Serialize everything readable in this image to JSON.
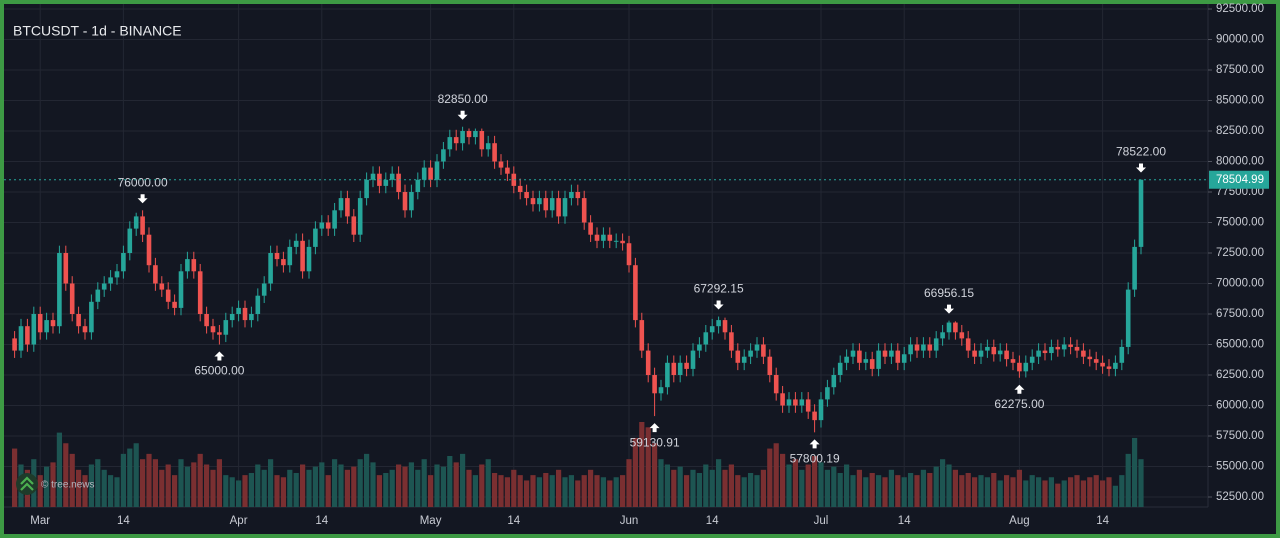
{
  "chart_data": {
    "type": "candlestick",
    "title": "BTCUSDT - 1d - BINANCE",
    "watermark": "© tree.news",
    "up_color": "#26a69a",
    "down_color": "#ef5350",
    "volume_up_color": "#1d5552",
    "volume_down_color": "#7a2f31",
    "grid": true,
    "ylim": [
      51680,
      92910
    ],
    "yticks": [
      {
        "value": 52500,
        "label": "52500.00"
      },
      {
        "value": 55000,
        "label": "55000.00"
      },
      {
        "value": 57500,
        "label": "57500.00"
      },
      {
        "value": 60000,
        "label": "60000.00"
      },
      {
        "value": 62500,
        "label": "62500.00"
      },
      {
        "value": 65000,
        "label": "65000.00"
      },
      {
        "value": 67500,
        "label": "67500.00"
      },
      {
        "value": 70000,
        "label": "70000.00"
      },
      {
        "value": 72500,
        "label": "72500.00"
      },
      {
        "value": 75000,
        "label": "75000.00"
      },
      {
        "value": 77500,
        "label": "77500.00"
      },
      {
        "value": 80000,
        "label": "80000.00"
      },
      {
        "value": 82500,
        "label": "82500.00"
      },
      {
        "value": 85000,
        "label": "85000.00"
      },
      {
        "value": 87500,
        "label": "87500.00"
      },
      {
        "value": 90000,
        "label": "90000.00"
      },
      {
        "value": 92500,
        "label": "92500.00"
      }
    ],
    "last_price": {
      "value": 78504.99,
      "label": "78504.99"
    },
    "high_labels": [
      {
        "value": 76000,
        "label": "76000.00"
      },
      {
        "value": 82850,
        "label": "82850.00"
      },
      {
        "value": 67292.15,
        "label": "67292.15"
      },
      {
        "value": 66956.15,
        "label": "66956.15"
      },
      {
        "value": 78522,
        "label": "78522.00"
      }
    ],
    "low_labels": [
      {
        "value": 65000,
        "label": "65000.00"
      },
      {
        "value": 59130.91,
        "label": "59130.91"
      },
      {
        "value": 57800.19,
        "label": "57800.19"
      },
      {
        "value": 62275,
        "label": "62275.00"
      }
    ],
    "categories": [
      null,
      null,
      null,
      null,
      "Mar",
      null,
      null,
      null,
      null,
      null,
      null,
      null,
      null,
      null,
      null,
      null,
      null,
      "14",
      null,
      null,
      null,
      null,
      null,
      null,
      null,
      null,
      null,
      null,
      null,
      null,
      null,
      null,
      null,
      null,
      null,
      "Apr",
      null,
      null,
      null,
      null,
      null,
      null,
      null,
      null,
      null,
      null,
      null,
      null,
      "14",
      null,
      null,
      null,
      null,
      null,
      null,
      null,
      null,
      null,
      null,
      null,
      null,
      null,
      null,
      null,
      null,
      "May",
      null,
      null,
      null,
      null,
      null,
      null,
      null,
      null,
      null,
      null,
      null,
      null,
      "14",
      null,
      null,
      null,
      null,
      null,
      null,
      null,
      null,
      null,
      null,
      null,
      null,
      null,
      null,
      null,
      null,
      null,
      "Jun",
      null,
      null,
      null,
      null,
      null,
      null,
      null,
      null,
      null,
      null,
      null,
      null,
      "14",
      null,
      null,
      null,
      null,
      null,
      null,
      null,
      null,
      null,
      null,
      null,
      null,
      null,
      null,
      null,
      null,
      "Jul",
      null,
      null,
      null,
      null,
      null,
      null,
      null,
      null,
      null,
      null,
      null,
      null,
      "14",
      null,
      null,
      null,
      null,
      null,
      null,
      null,
      null,
      null,
      null,
      null,
      null,
      null,
      null,
      null,
      null,
      null,
      "Aug",
      null,
      null,
      null,
      null,
      null,
      null,
      null,
      null,
      null,
      null,
      null,
      null,
      "14",
      null,
      null,
      null,
      null,
      null,
      null
    ],
    "open": [
      65500,
      64500,
      66500,
      65000,
      67500,
      66000,
      67000,
      66500,
      72500,
      70000,
      67500,
      66500,
      66000,
      68500,
      69500,
      70000,
      70500,
      71000,
      72500,
      74500,
      75500,
      74000,
      71500,
      70000,
      69500,
      68500,
      68000,
      71000,
      72000,
      71000,
      67500,
      66500,
      66000,
      65800,
      67000,
      67500,
      68000,
      67000,
      67500,
      69000,
      70000,
      72500,
      72000,
      71500,
      73000,
      73500,
      71000,
      73000,
      74500,
      75000,
      74500,
      76000,
      77000,
      75500,
      74000,
      77000,
      78500,
      79000,
      78000,
      78500,
      79000,
      77500,
      76000,
      77500,
      78500,
      79500,
      78500,
      80000,
      81000,
      82000,
      81500,
      82500,
      82000,
      82500,
      81000,
      81500,
      80000,
      79500,
      79000,
      78000,
      77500,
      77000,
      76500,
      77000,
      76000,
      77000,
      75500,
      77000,
      77500,
      77000,
      75000,
      74000,
      73500,
      74000,
      73500,
      73500,
      73300,
      71500,
      67000,
      64500,
      62500,
      61000,
      61500,
      63500,
      62500,
      63500,
      63000,
      64500,
      65000,
      66000,
      66500,
      67000,
      66000,
      64500,
      63500,
      64000,
      64500,
      65000,
      64000,
      62500,
      61000,
      60000,
      60500,
      60000,
      60500,
      59500,
      58800,
      60500,
      61500,
      62500,
      63500,
      64000,
      64500,
      63500,
      63800,
      63000,
      64500,
      64000,
      64500,
      63500,
      64200,
      65000,
      64500,
      65000,
      64500,
      65500,
      66000,
      66800,
      66000,
      65500,
      64500,
      64000,
      64500,
      64800,
      64200,
      64500,
      63800,
      63500,
      62800,
      63500,
      64000,
      64500,
      64300,
      64800,
      64600,
      65000,
      64800,
      64500,
      64000,
      63800,
      63500,
      63200,
      63000,
      63500,
      64800,
      69500,
      73000
    ],
    "high": [
      66100,
      67100,
      67100,
      68100,
      68100,
      67600,
      67600,
      73100,
      73100,
      70600,
      68100,
      67100,
      69100,
      70100,
      70600,
      71100,
      71600,
      73100,
      75100,
      75800,
      76000,
      74600,
      72100,
      70600,
      70100,
      69100,
      71600,
      72600,
      72600,
      71600,
      68100,
      67100,
      66600,
      67600,
      68100,
      68600,
      68600,
      68100,
      69600,
      70600,
      73100,
      73100,
      72600,
      73600,
      74100,
      74100,
      73600,
      75100,
      75600,
      75600,
      76600,
      77600,
      77600,
      76100,
      77600,
      79100,
      79600,
      79600,
      79100,
      79600,
      79600,
      78100,
      78100,
      79100,
      80100,
      80100,
      80600,
      81600,
      82600,
      82600,
      82850,
      82700,
      82700,
      82700,
      82100,
      82100,
      80600,
      80100,
      79600,
      78600,
      78100,
      77600,
      77600,
      77600,
      77600,
      77600,
      77600,
      78100,
      78100,
      77600,
      75600,
      74600,
      74600,
      74600,
      74100,
      74100,
      73900,
      72100,
      67600,
      65100,
      63100,
      62100,
      64100,
      64100,
      64100,
      64100,
      65100,
      65600,
      66600,
      67100,
      67292.15,
      67200,
      66600,
      65100,
      64600,
      65100,
      65600,
      65600,
      64600,
      63100,
      61600,
      61100,
      61100,
      61100,
      61100,
      60100,
      61100,
      62100,
      63100,
      64100,
      64600,
      65100,
      65100,
      64400,
      64400,
      65100,
      65100,
      65100,
      65100,
      64800,
      65600,
      65600,
      65600,
      65600,
      66100,
      66600,
      66956.15,
      66900,
      66600,
      66100,
      65100,
      65100,
      65400,
      65400,
      65100,
      65100,
      64400,
      64100,
      64100,
      64600,
      65100,
      65100,
      65400,
      65400,
      65600,
      65600,
      65400,
      65100,
      64600,
      64400,
      64100,
      63800,
      64100,
      65400,
      70100,
      73600,
      78522
    ],
    "low": [
      63900,
      63900,
      64400,
      64400,
      65400,
      65400,
      65900,
      65900,
      69400,
      66900,
      65900,
      65400,
      65400,
      67900,
      68900,
      69400,
      69900,
      70400,
      71900,
      73900,
      73400,
      70900,
      69400,
      68900,
      67900,
      67400,
      67400,
      70400,
      70400,
      66900,
      65900,
      65400,
      65000,
      65200,
      66400,
      66900,
      66400,
      66400,
      66900,
      68400,
      69400,
      71400,
      70900,
      70900,
      72400,
      70400,
      70400,
      72400,
      73900,
      73900,
      73900,
      75400,
      74900,
      73400,
      73400,
      76400,
      77900,
      77400,
      77400,
      77900,
      76900,
      75400,
      75400,
      76900,
      77900,
      77900,
      77900,
      79400,
      80400,
      80900,
      80900,
      81400,
      81400,
      80400,
      80400,
      79400,
      78900,
      78400,
      77400,
      76900,
      76400,
      75900,
      75900,
      75400,
      75400,
      74900,
      74900,
      76400,
      76400,
      74400,
      73400,
      72900,
      72900,
      72900,
      72900,
      72700,
      70900,
      66400,
      63900,
      61900,
      59130.91,
      60400,
      60900,
      61900,
      61900,
      62400,
      62400,
      63900,
      64400,
      65400,
      65900,
      65400,
      63900,
      62900,
      62900,
      63400,
      63900,
      63400,
      61900,
      60400,
      59400,
      59400,
      59400,
      59400,
      58900,
      57800.19,
      58200,
      59900,
      60900,
      61900,
      62900,
      63400,
      62900,
      62900,
      62400,
      62400,
      63400,
      63400,
      62900,
      62900,
      63600,
      63900,
      63900,
      63900,
      63900,
      64900,
      65400,
      65400,
      64900,
      63900,
      63400,
      63400,
      63900,
      63600,
      63600,
      63200,
      62900,
      62275,
      62300,
      62900,
      63400,
      63700,
      63700,
      64000,
      64000,
      64200,
      63900,
      63400,
      63200,
      62900,
      62600,
      62400,
      62400,
      62900,
      64200,
      68900,
      72400
    ],
    "close": [
      64500,
      66500,
      65000,
      67500,
      66000,
      67000,
      66500,
      72500,
      70000,
      67500,
      66500,
      66000,
      68500,
      69500,
      70000,
      70500,
      71000,
      72500,
      74500,
      75500,
      74000,
      71500,
      70000,
      69500,
      68500,
      68000,
      71000,
      72000,
      71000,
      67500,
      66500,
      66000,
      65800,
      67000,
      67500,
      68000,
      67000,
      67500,
      69000,
      70000,
      72500,
      72000,
      71500,
      73000,
      73500,
      71000,
      73000,
      74500,
      75000,
      74500,
      76000,
      77000,
      75500,
      74000,
      77000,
      78500,
      79000,
      78000,
      78500,
      79000,
      77500,
      76000,
      77500,
      78500,
      79500,
      78500,
      80000,
      81000,
      82000,
      81500,
      82500,
      82000,
      82500,
      81000,
      81500,
      80000,
      79500,
      79000,
      78000,
      77500,
      77000,
      76500,
      77000,
      76000,
      77000,
      75500,
      77000,
      77500,
      77000,
      75000,
      74000,
      73500,
      74000,
      73500,
      73500,
      73300,
      71500,
      67000,
      64500,
      62500,
      61000,
      61500,
      63500,
      62500,
      63500,
      63000,
      64500,
      65000,
      66000,
      66500,
      67000,
      66000,
      64500,
      63500,
      64000,
      64500,
      65000,
      64000,
      62500,
      61000,
      60000,
      60500,
      60000,
      60500,
      59500,
      58800,
      60500,
      61500,
      62500,
      63500,
      64000,
      64500,
      63500,
      63800,
      63000,
      64500,
      64000,
      64500,
      63500,
      64200,
      65000,
      64500,
      65000,
      64500,
      65500,
      66000,
      66800,
      66000,
      65500,
      64500,
      64000,
      64500,
      64800,
      64200,
      64500,
      63800,
      63500,
      62800,
      63500,
      64000,
      64500,
      64300,
      64800,
      64600,
      65000,
      64800,
      64500,
      64000,
      63800,
      63500,
      63200,
      63000,
      63500,
      64800,
      69500,
      73000,
      78504.99
    ],
    "volume": [
      55,
      40,
      35,
      45,
      30,
      38,
      42,
      70,
      60,
      50,
      35,
      30,
      40,
      45,
      35,
      30,
      28,
      50,
      55,
      60,
      45,
      50,
      45,
      35,
      40,
      30,
      45,
      38,
      42,
      50,
      40,
      35,
      45,
      30,
      28,
      25,
      30,
      32,
      40,
      35,
      45,
      30,
      28,
      35,
      32,
      40,
      35,
      38,
      42,
      30,
      45,
      40,
      35,
      38,
      45,
      50,
      42,
      30,
      32,
      35,
      40,
      38,
      42,
      35,
      45,
      30,
      40,
      38,
      48,
      42,
      50,
      35,
      30,
      40,
      45,
      32,
      30,
      28,
      35,
      30,
      25,
      30,
      28,
      32,
      30,
      35,
      28,
      30,
      25,
      30,
      35,
      30,
      28,
      25,
      28,
      30,
      45,
      65,
      80,
      75,
      60,
      45,
      40,
      35,
      38,
      30,
      35,
      32,
      40,
      35,
      45,
      35,
      40,
      30,
      28,
      32,
      30,
      35,
      55,
      60,
      50,
      40,
      45,
      35,
      40,
      48,
      42,
      35,
      38,
      32,
      40,
      30,
      35,
      28,
      32,
      30,
      28,
      35,
      30,
      28,
      32,
      30,
      35,
      32,
      38,
      45,
      40,
      35,
      30,
      32,
      28,
      30,
      28,
      32,
      25,
      30,
      28,
      35,
      25,
      30,
      28,
      25,
      28,
      22,
      25,
      28,
      30,
      25,
      28,
      30,
      25,
      28,
      20,
      30,
      50,
      65,
      45
    ]
  }
}
